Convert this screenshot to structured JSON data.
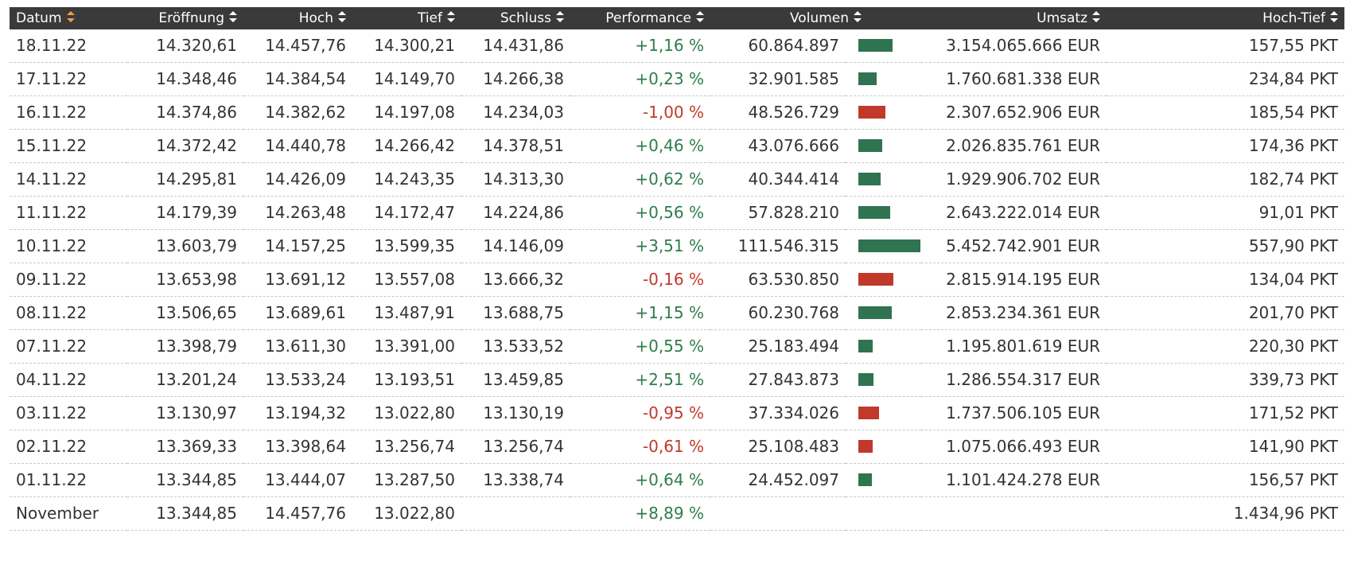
{
  "colors": {
    "header_bg": "#3a3a3a",
    "positive": "#2e7d4a",
    "negative": "#c0392b",
    "bar_positive": "#2f7350",
    "bar_negative": "#c0392b",
    "sort_active": "#f39c4a",
    "sort_inactive": "#ffffff"
  },
  "columns": [
    {
      "key": "datum",
      "label": "Datum",
      "sort_icon": "sort-asc-active-icon"
    },
    {
      "key": "eroeffnung",
      "label": "Eröffnung",
      "sort_icon": "sort-icon"
    },
    {
      "key": "hoch",
      "label": "Hoch",
      "sort_icon": "sort-icon"
    },
    {
      "key": "tief",
      "label": "Tief",
      "sort_icon": "sort-icon"
    },
    {
      "key": "schluss",
      "label": "Schluss",
      "sort_icon": "sort-icon"
    },
    {
      "key": "performance",
      "label": "Performance",
      "sort_icon": "sort-icon"
    },
    {
      "key": "volumen",
      "label": "Volumen",
      "sort_icon": "sort-icon"
    },
    {
      "key": "umsatz",
      "label": "Umsatz",
      "sort_icon": "sort-icon"
    },
    {
      "key": "hochtief",
      "label": "Hoch-Tief",
      "sort_icon": "sort-icon"
    }
  ],
  "rows": [
    {
      "datum": "18.11.22",
      "eroeffnung": "14.320,61",
      "hoch": "14.457,76",
      "tief": "14.300,21",
      "schluss": "14.431,86",
      "performance": "+1,16 %",
      "direction": "up",
      "volumen": "60.864.897",
      "volume_value": 60864897,
      "umsatz": "3.154.065.666 EUR",
      "hochtief": "157,55 PKT"
    },
    {
      "datum": "17.11.22",
      "eroeffnung": "14.348,46",
      "hoch": "14.384,54",
      "tief": "14.149,70",
      "schluss": "14.266,38",
      "performance": "+0,23 %",
      "direction": "up",
      "volumen": "32.901.585",
      "volume_value": 32901585,
      "umsatz": "1.760.681.338 EUR",
      "hochtief": "234,84 PKT"
    },
    {
      "datum": "16.11.22",
      "eroeffnung": "14.374,86",
      "hoch": "14.382,62",
      "tief": "14.197,08",
      "schluss": "14.234,03",
      "performance": "-1,00 %",
      "direction": "down",
      "volumen": "48.526.729",
      "volume_value": 48526729,
      "umsatz": "2.307.652.906 EUR",
      "hochtief": "185,54 PKT"
    },
    {
      "datum": "15.11.22",
      "eroeffnung": "14.372,42",
      "hoch": "14.440,78",
      "tief": "14.266,42",
      "schluss": "14.378,51",
      "performance": "+0,46 %",
      "direction": "up",
      "volumen": "43.076.666",
      "volume_value": 43076666,
      "umsatz": "2.026.835.761 EUR",
      "hochtief": "174,36 PKT"
    },
    {
      "datum": "14.11.22",
      "eroeffnung": "14.295,81",
      "hoch": "14.426,09",
      "tief": "14.243,35",
      "schluss": "14.313,30",
      "performance": "+0,62 %",
      "direction": "up",
      "volumen": "40.344.414",
      "volume_value": 40344414,
      "umsatz": "1.929.906.702 EUR",
      "hochtief": "182,74 PKT"
    },
    {
      "datum": "11.11.22",
      "eroeffnung": "14.179,39",
      "hoch": "14.263,48",
      "tief": "14.172,47",
      "schluss": "14.224,86",
      "performance": "+0,56 %",
      "direction": "up",
      "volumen": "57.828.210",
      "volume_value": 57828210,
      "umsatz": "2.643.222.014 EUR",
      "hochtief": "91,01 PKT"
    },
    {
      "datum": "10.11.22",
      "eroeffnung": "13.603,79",
      "hoch": "14.157,25",
      "tief": "13.599,35",
      "schluss": "14.146,09",
      "performance": "+3,51 %",
      "direction": "up",
      "volumen": "111.546.315",
      "volume_value": 111546315,
      "umsatz": "5.452.742.901 EUR",
      "hochtief": "557,90 PKT"
    },
    {
      "datum": "09.11.22",
      "eroeffnung": "13.653,98",
      "hoch": "13.691,12",
      "tief": "13.557,08",
      "schluss": "13.666,32",
      "performance": "-0,16 %",
      "direction": "down",
      "volumen": "63.530.850",
      "volume_value": 63530850,
      "umsatz": "2.815.914.195 EUR",
      "hochtief": "134,04 PKT"
    },
    {
      "datum": "08.11.22",
      "eroeffnung": "13.506,65",
      "hoch": "13.689,61",
      "tief": "13.487,91",
      "schluss": "13.688,75",
      "performance": "+1,15 %",
      "direction": "up",
      "volumen": "60.230.768",
      "volume_value": 60230768,
      "umsatz": "2.853.234.361 EUR",
      "hochtief": "201,70 PKT"
    },
    {
      "datum": "07.11.22",
      "eroeffnung": "13.398,79",
      "hoch": "13.611,30",
      "tief": "13.391,00",
      "schluss": "13.533,52",
      "performance": "+0,55 %",
      "direction": "up",
      "volumen": "25.183.494",
      "volume_value": 25183494,
      "umsatz": "1.195.801.619 EUR",
      "hochtief": "220,30 PKT"
    },
    {
      "datum": "04.11.22",
      "eroeffnung": "13.201,24",
      "hoch": "13.533,24",
      "tief": "13.193,51",
      "schluss": "13.459,85",
      "performance": "+2,51 %",
      "direction": "up",
      "volumen": "27.843.873",
      "volume_value": 27843873,
      "umsatz": "1.286.554.317 EUR",
      "hochtief": "339,73 PKT"
    },
    {
      "datum": "03.11.22",
      "eroeffnung": "13.130,97",
      "hoch": "13.194,32",
      "tief": "13.022,80",
      "schluss": "13.130,19",
      "performance": "-0,95 %",
      "direction": "down",
      "volumen": "37.334.026",
      "volume_value": 37334026,
      "umsatz": "1.737.506.105 EUR",
      "hochtief": "171,52 PKT"
    },
    {
      "datum": "02.11.22",
      "eroeffnung": "13.369,33",
      "hoch": "13.398,64",
      "tief": "13.256,74",
      "schluss": "13.256,74",
      "performance": "-0,61 %",
      "direction": "down",
      "volumen": "25.108.483",
      "volume_value": 25108483,
      "umsatz": "1.075.066.493 EUR",
      "hochtief": "141,90 PKT"
    },
    {
      "datum": "01.11.22",
      "eroeffnung": "13.344,85",
      "hoch": "13.444,07",
      "tief": "13.287,50",
      "schluss": "13.338,74",
      "performance": "+0,64 %",
      "direction": "up",
      "volumen": "24.452.097",
      "volume_value": 24452097,
      "umsatz": "1.101.424.278 EUR",
      "hochtief": "156,57 PKT"
    }
  ],
  "summary": {
    "datum": "November",
    "eroeffnung": "13.344,85",
    "hoch": "14.457,76",
    "tief": "13.022,80",
    "schluss": "",
    "performance": "+8,89 %",
    "direction": "up",
    "volumen": "",
    "umsatz": "",
    "hochtief": "1.434,96 PKT"
  }
}
